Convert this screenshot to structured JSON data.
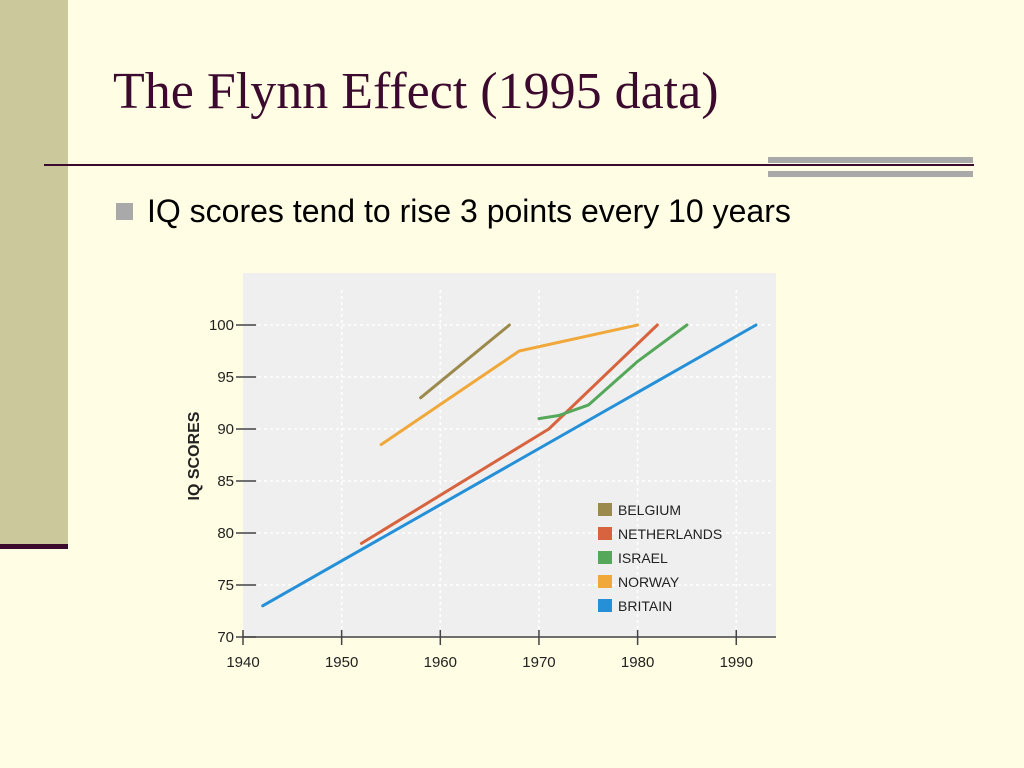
{
  "slide": {
    "title": "The Flynn Effect (1995 data)",
    "bullet": "IQ scores tend to rise 3 points every 10 years"
  },
  "colors": {
    "background": "#fffde3",
    "sidebar": "#cbc99c",
    "title": "#3b0a2e",
    "accent_gray": "#a9a9a9",
    "chart_background": "#efefef"
  },
  "chart_data": {
    "type": "line",
    "xlabel": "",
    "ylabel": "IQ SCORES",
    "xlim": [
      1940,
      1993
    ],
    "ylim": [
      70,
      104
    ],
    "xticks": [
      1940,
      1950,
      1960,
      1970,
      1980,
      1990
    ],
    "yticks": [
      70,
      75,
      80,
      85,
      90,
      95,
      100
    ],
    "grid": true,
    "legend_position": "bottom-right",
    "series": [
      {
        "name": "BELGIUM",
        "color": "#9b8a4c",
        "points": [
          [
            1958,
            93
          ],
          [
            1967,
            100
          ]
        ]
      },
      {
        "name": "NETHERLANDS",
        "color": "#d7643f",
        "points": [
          [
            1952,
            79
          ],
          [
            1971,
            90
          ],
          [
            1982,
            100
          ]
        ]
      },
      {
        "name": "ISRAEL",
        "color": "#55a85a",
        "points": [
          [
            1970,
            91
          ],
          [
            1972,
            91.3
          ],
          [
            1975,
            92.3
          ],
          [
            1980,
            96.5
          ],
          [
            1985,
            100
          ]
        ]
      },
      {
        "name": "NORWAY",
        "color": "#f0a83b",
        "points": [
          [
            1954,
            88.5
          ],
          [
            1968,
            97.5
          ],
          [
            1980,
            100
          ]
        ]
      },
      {
        "name": "BRITAIN",
        "color": "#2590d8",
        "points": [
          [
            1942,
            73
          ],
          [
            1992,
            100
          ]
        ]
      }
    ]
  }
}
